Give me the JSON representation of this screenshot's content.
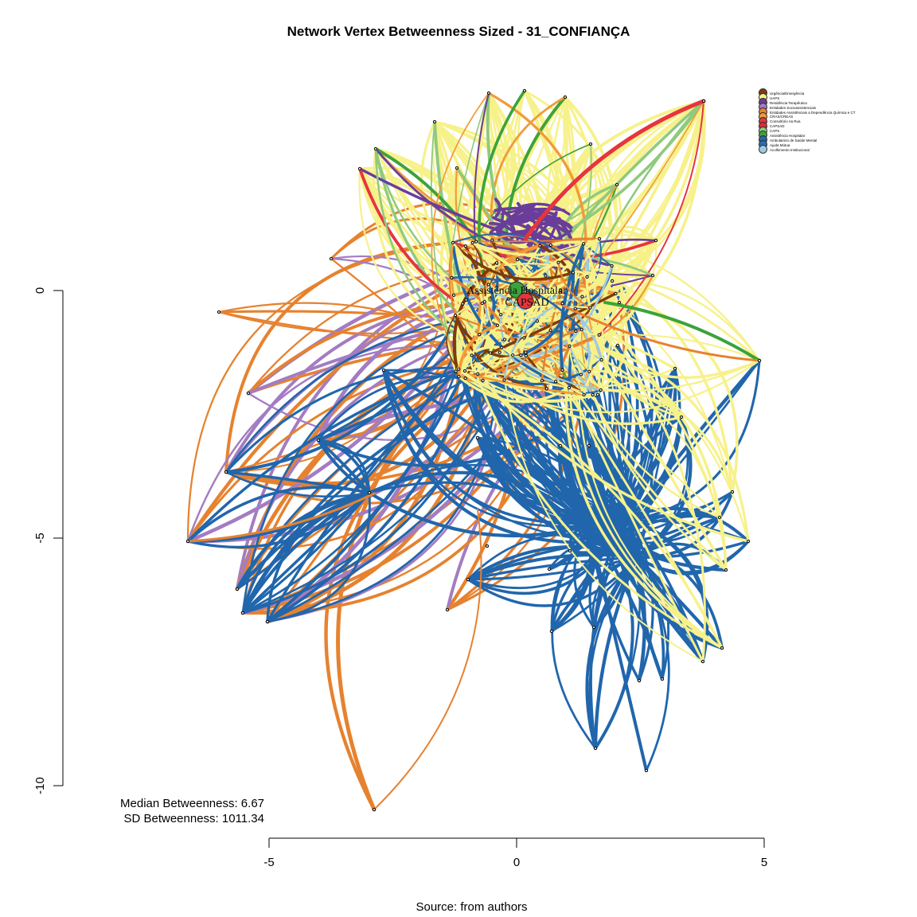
{
  "title": "Network Vertex Betweenness Sized - 31_CONFIANÇA",
  "caption": "Source: from authors",
  "stats": {
    "median": "Median Betweenness: 6.67",
    "sd": "SD Betweenness: 1011.34"
  },
  "axes": {
    "x_ticks": [
      "-5",
      "0",
      "5"
    ],
    "y_ticks": [
      "0",
      "-5",
      "-10"
    ],
    "xlim": [
      -5,
      5
    ],
    "ylim": [
      -10,
      0
    ]
  },
  "legend": [
    {
      "label": "Urgência/Emergência",
      "color": "#7f3b08"
    },
    {
      "label": "UAPS",
      "color": "#f7f18a"
    },
    {
      "label": "Residência Terapêutica",
      "color": "#6a3d9a"
    },
    {
      "label": "Entidades Socioassistenciais",
      "color": "#a37cc2"
    },
    {
      "label": "Entidades Assistênciais a Dependência Química e CT",
      "color": "#e6822f"
    },
    {
      "label": "CRAS/CREAS",
      "color": "#f29b38"
    },
    {
      "label": "Consultório na Rua",
      "color": "#e6353d"
    },
    {
      "label": "CAPSAD",
      "color": "#d7303a"
    },
    {
      "label": "CAPS",
      "color": "#8fca7e"
    },
    {
      "label": "Assistência Hospitalar",
      "color": "#3ca33a"
    },
    {
      "label": "Ambulatório de Saúde Mental",
      "color": "#2166ac"
    },
    {
      "label": "Ajuda Mútua",
      "color": "#2a6eb0"
    },
    {
      "label": "Acolhimento Institucional",
      "color": "#9ecae1"
    }
  ],
  "node_labels": {
    "hospital": "Assistência Hospitalar",
    "capsad": "CAPSAD"
  }
}
